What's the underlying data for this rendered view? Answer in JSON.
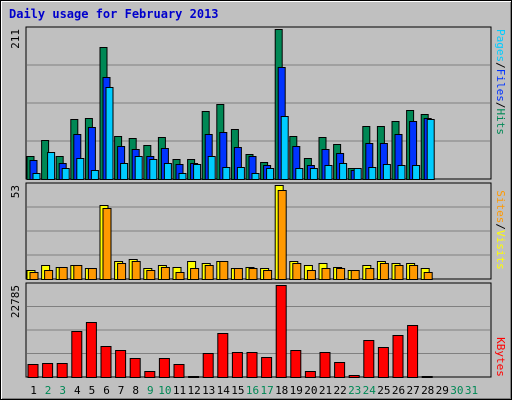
{
  "title": "Daily usage for February 2013",
  "colors": {
    "pages": "#00ccff",
    "files": "#0033ff",
    "hits": "#008855",
    "visits": "#ffff00",
    "sites": "#ff9900",
    "kbytes": "#ff0000",
    "weekday_label": "#000000",
    "weekend_label": "#008855"
  },
  "chart_data": [
    {
      "type": "bar",
      "ylabel_max": "211",
      "ylim": [
        0,
        211
      ],
      "categories": [
        "1",
        "2",
        "3",
        "4",
        "5",
        "6",
        "7",
        "8",
        "9",
        "10",
        "11",
        "12",
        "13",
        "14",
        "15",
        "16",
        "17",
        "18",
        "19",
        "20",
        "21",
        "22",
        "23",
        "24",
        "25",
        "26",
        "27",
        "28",
        "29",
        "30",
        "31"
      ],
      "series": [
        {
          "name": "Hits",
          "values": [
            33,
            55,
            33,
            85,
            86,
            186,
            61,
            57,
            48,
            59,
            28,
            28,
            95,
            106,
            71,
            35,
            24,
            211,
            61,
            29,
            59,
            49,
            16,
            74,
            75,
            82,
            97,
            91,
            0,
            0,
            0
          ]
        },
        {
          "name": "Files",
          "values": [
            27,
            0,
            22,
            63,
            73,
            143,
            46,
            42,
            32,
            44,
            21,
            22,
            64,
            66,
            45,
            33,
            20,
            157,
            46,
            19,
            42,
            36,
            12,
            51,
            51,
            64,
            82,
            86,
            0,
            0,
            0
          ]
        },
        {
          "name": "Pages",
          "values": [
            8,
            38,
            16,
            29,
            13,
            129,
            23,
            33,
            28,
            22,
            8,
            21,
            32,
            17,
            17,
            9,
            16,
            89,
            15,
            16,
            19,
            23,
            16,
            17,
            21,
            19,
            20,
            85,
            0,
            0,
            0
          ]
        }
      ]
    },
    {
      "type": "bar",
      "ylabel_max": "53",
      "ylim": [
        0,
        53
      ],
      "categories": [
        "1",
        "2",
        "3",
        "4",
        "5",
        "6",
        "7",
        "8",
        "9",
        "10",
        "11",
        "12",
        "13",
        "14",
        "15",
        "16",
        "17",
        "18",
        "19",
        "20",
        "21",
        "22",
        "23",
        "24",
        "25",
        "26",
        "27",
        "28",
        "29",
        "30",
        "31"
      ],
      "series": [
        {
          "name": "Visits",
          "values": [
            5,
            8,
            7,
            8,
            6,
            42,
            10,
            11,
            6,
            8,
            7,
            10,
            9,
            10,
            6,
            7,
            6,
            53,
            10,
            8,
            9,
            7,
            5,
            8,
            10,
            9,
            9,
            6,
            0,
            0,
            0
          ]
        },
        {
          "name": "Sites",
          "values": [
            4,
            5,
            7,
            8,
            6,
            40,
            9,
            10,
            5,
            7,
            4,
            6,
            8,
            10,
            6,
            6,
            5,
            50,
            9,
            5,
            6,
            6,
            5,
            6,
            9,
            8,
            8,
            4,
            0,
            0,
            0
          ]
        }
      ]
    },
    {
      "type": "bar",
      "ylabel_max": "22785",
      "ylim": [
        0,
        22785
      ],
      "categories": [
        "1",
        "2",
        "3",
        "4",
        "5",
        "6",
        "7",
        "8",
        "9",
        "10",
        "11",
        "12",
        "13",
        "14",
        "15",
        "16",
        "17",
        "18",
        "19",
        "20",
        "21",
        "22",
        "23",
        "24",
        "25",
        "26",
        "27",
        "28",
        "29",
        "30",
        "31"
      ],
      "series": [
        {
          "name": "KBytes",
          "values": [
            3200,
            3400,
            3400,
            11400,
            13600,
            7800,
            6700,
            4700,
            1600,
            4800,
            3300,
            300,
            6000,
            11000,
            6200,
            6200,
            4900,
            22785,
            6700,
            1500,
            6300,
            3600,
            400,
            9200,
            7500,
            10500,
            12800,
            300,
            0,
            0,
            0
          ]
        }
      ]
    }
  ],
  "right_labels": {
    "top": {
      "pages": "Pages",
      "files": "Files",
      "hits": "Hits",
      "sep": "/"
    },
    "middle": {
      "sites": "Sites",
      "visits": "Visits",
      "sep": "/"
    },
    "bottom": {
      "kbytes": "KBytes"
    }
  }
}
